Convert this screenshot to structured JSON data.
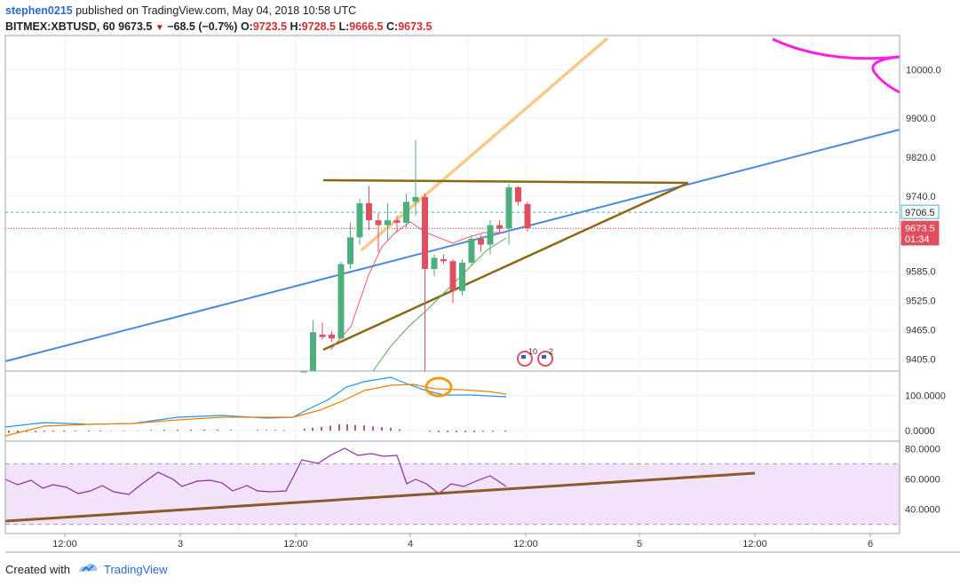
{
  "header": {
    "author": "stephen0215",
    "published_text": " published on TradingView.com, May 04, 2018 10:58 UTC",
    "symbol": "BITMEX:XBTUSD, 60",
    "last": "9673.5",
    "change": "−68.5 (−0.7%)",
    "o_label": "O:",
    "o_value": "9723.5",
    "h_label": "H:",
    "h_value": "9728.5",
    "l_label": "L:",
    "l_value": "9666.5",
    "c_label": "C:",
    "c_value": "9673.5"
  },
  "footer": {
    "created_with": "Created with",
    "brand": "TradingView"
  },
  "colors": {
    "up": "#4caf7d",
    "down": "#e04f5f",
    "trend_blue": "#4a89dc",
    "triangle": "#8b6914",
    "orange_line": "#f9c98a",
    "magenta": "#ff1fe0",
    "rsi_band": "#f3e3fa",
    "rsi_line": "#8e2ea0",
    "rsi_trend": "#8b5a2b",
    "ema_red": "#f25c66",
    "ema_green": "#5aa85a",
    "macd_blue": "#2196f3",
    "macd_orange": "#f57c00",
    "hist": "#a0166b"
  },
  "chart_data": [
    {
      "type": "candlestick",
      "name": "price",
      "y_ticks": [
        "10000.0",
        "9900.0",
        "9820.0",
        "9740.0",
        "9585.0",
        "9525.0",
        "9465.0",
        "9405.0"
      ],
      "y_tick_values": [
        10000,
        9900,
        9820,
        9740,
        9585,
        9525,
        9465,
        9405
      ],
      "ylim": [
        9380,
        10070
      ],
      "price_tags": [
        {
          "label": "9706.5",
          "value": 9706.5,
          "style": "cyan"
        },
        {
          "label": "9673.5",
          "value": 9673.5,
          "style": "red"
        },
        {
          "label": "01:34",
          "value": 9652,
          "style": "red"
        }
      ],
      "candles": [
        {
          "t": 26,
          "o": 9370,
          "h": 9380,
          "l": 9370,
          "c": 9380
        },
        {
          "t": 27,
          "o": 9380,
          "h": 9485,
          "l": 9370,
          "c": 9460
        },
        {
          "t": 28,
          "o": 9455,
          "h": 9480,
          "l": 9445,
          "c": 9450
        },
        {
          "t": 29,
          "o": 9455,
          "h": 9462,
          "l": 9440,
          "c": 9447
        },
        {
          "t": 30,
          "o": 9447,
          "h": 9605,
          "l": 9445,
          "c": 9600
        },
        {
          "t": 31,
          "o": 9600,
          "h": 9685,
          "l": 9590,
          "c": 9655
        },
        {
          "t": 32,
          "o": 9655,
          "h": 9735,
          "l": 9640,
          "c": 9725
        },
        {
          "t": 33,
          "o": 9725,
          "h": 9760,
          "l": 9670,
          "c": 9690
        },
        {
          "t": 34,
          "o": 9690,
          "h": 9705,
          "l": 9625,
          "c": 9680
        },
        {
          "t": 35,
          "o": 9680,
          "h": 9725,
          "l": 9650,
          "c": 9690
        },
        {
          "t": 36,
          "o": 9690,
          "h": 9700,
          "l": 9665,
          "c": 9685
        },
        {
          "t": 37,
          "o": 9685,
          "h": 9745,
          "l": 9675,
          "c": 9728
        },
        {
          "t": 38,
          "o": 9728,
          "h": 9855,
          "l": 9700,
          "c": 9738
        },
        {
          "t": 39,
          "o": 9738,
          "h": 9745,
          "l": 9380,
          "c": 9590
        },
        {
          "t": 40,
          "o": 9590,
          "h": 9620,
          "l": 9575,
          "c": 9613
        },
        {
          "t": 41,
          "o": 9610,
          "h": 9620,
          "l": 9600,
          "c": 9606
        },
        {
          "t": 42,
          "o": 9606,
          "h": 9610,
          "l": 9520,
          "c": 9545
        },
        {
          "t": 43,
          "o": 9545,
          "h": 9610,
          "l": 9535,
          "c": 9603
        },
        {
          "t": 44,
          "o": 9603,
          "h": 9660,
          "l": 9598,
          "c": 9652
        },
        {
          "t": 45,
          "o": 9652,
          "h": 9660,
          "l": 9625,
          "c": 9640
        },
        {
          "t": 46,
          "o": 9640,
          "h": 9690,
          "l": 9620,
          "c": 9680
        },
        {
          "t": 47,
          "o": 9680,
          "h": 9690,
          "l": 9665,
          "c": 9673
        },
        {
          "t": 48,
          "o": 9673,
          "h": 9765,
          "l": 9640,
          "c": 9758
        },
        {
          "t": 49,
          "o": 9758,
          "h": 9760,
          "l": 9720,
          "c": 9728
        },
        {
          "t": 50,
          "o": 9723.5,
          "h": 9728.5,
          "l": 9666.5,
          "c": 9673.5
        }
      ]
    },
    {
      "type": "line",
      "name": "macd-panel",
      "y_ticks": [
        "100.0000",
        "0.0000"
      ],
      "y_tick_values": [
        100,
        0
      ],
      "ylim": [
        -30,
        170
      ]
    },
    {
      "type": "line",
      "name": "rsi-panel",
      "y_ticks": [
        "80.0000",
        "60.0000",
        "40.0000"
      ],
      "y_tick_values": [
        80,
        60,
        40
      ],
      "ylim": [
        24,
        85
      ]
    },
    {
      "type": "axis",
      "name": "time-axis",
      "x_ticks": [
        "12:00",
        "3",
        "12:00",
        "4",
        "12:00",
        "5",
        "12:00",
        "6"
      ]
    }
  ]
}
